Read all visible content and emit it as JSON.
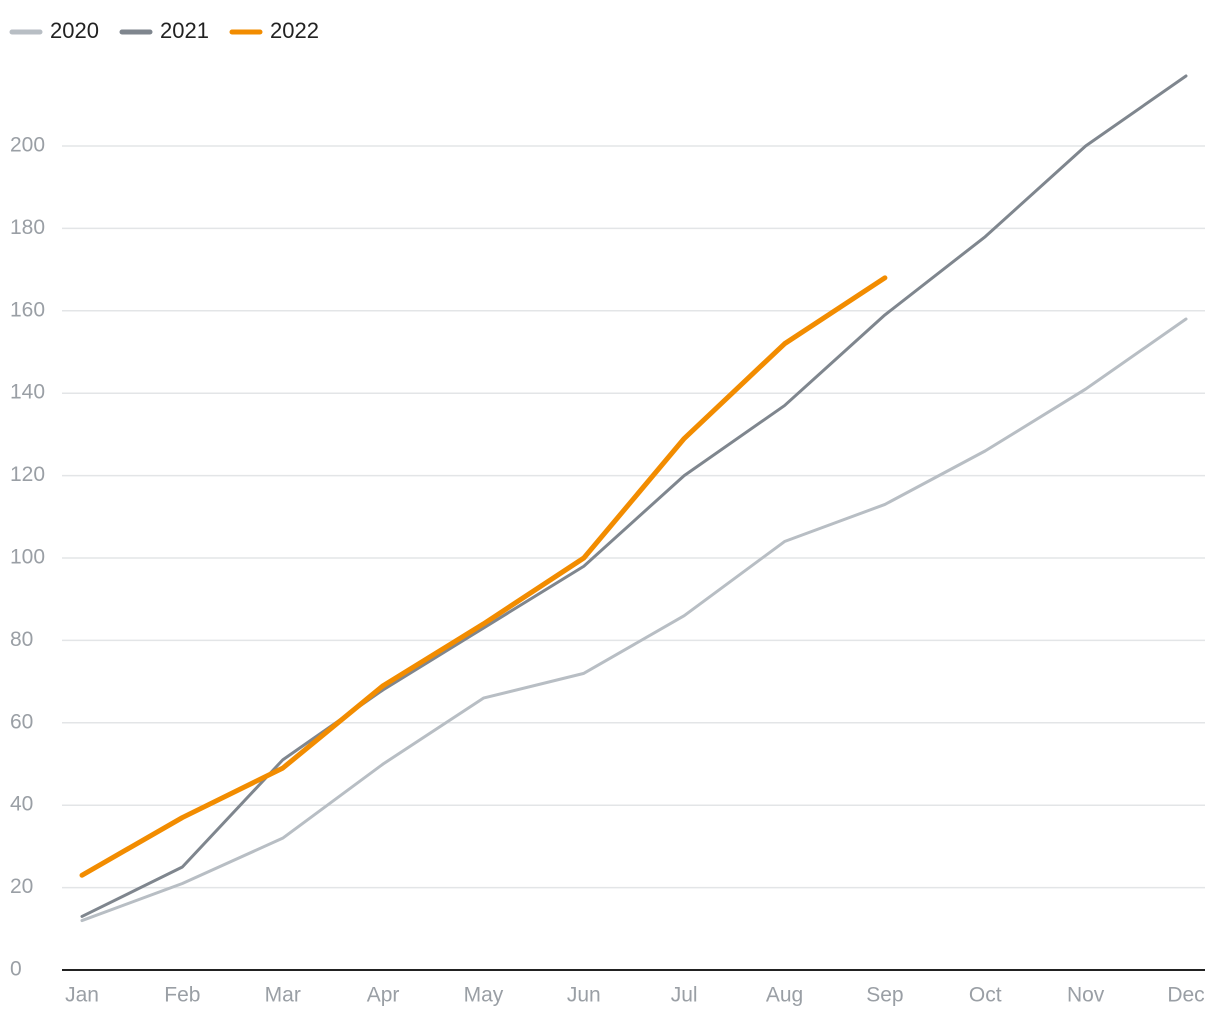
{
  "chart_data": {
    "type": "line",
    "categories": [
      "Jan",
      "Feb",
      "Mar",
      "Apr",
      "May",
      "Jun",
      "Jul",
      "Aug",
      "Sep",
      "Oct",
      "Nov",
      "Dec"
    ],
    "series": [
      {
        "name": "2020",
        "color": "#b8bec4",
        "values": [
          12,
          21,
          32,
          50,
          66,
          72,
          86,
          104,
          113,
          126,
          141,
          158
        ]
      },
      {
        "name": "2021",
        "color": "#7f868e",
        "values": [
          13,
          25,
          51,
          68,
          83,
          98,
          120,
          137,
          159,
          178,
          200,
          217
        ]
      },
      {
        "name": "2022",
        "color": "#f28c00",
        "values": [
          23,
          37,
          49,
          69,
          84,
          100,
          129,
          152,
          168,
          null,
          null,
          null
        ]
      }
    ],
    "ylim": [
      0,
      220
    ],
    "yticks": [
      0,
      20,
      40,
      60,
      80,
      100,
      120,
      140,
      160,
      180,
      200
    ],
    "grid": true,
    "legend": "top-left"
  }
}
